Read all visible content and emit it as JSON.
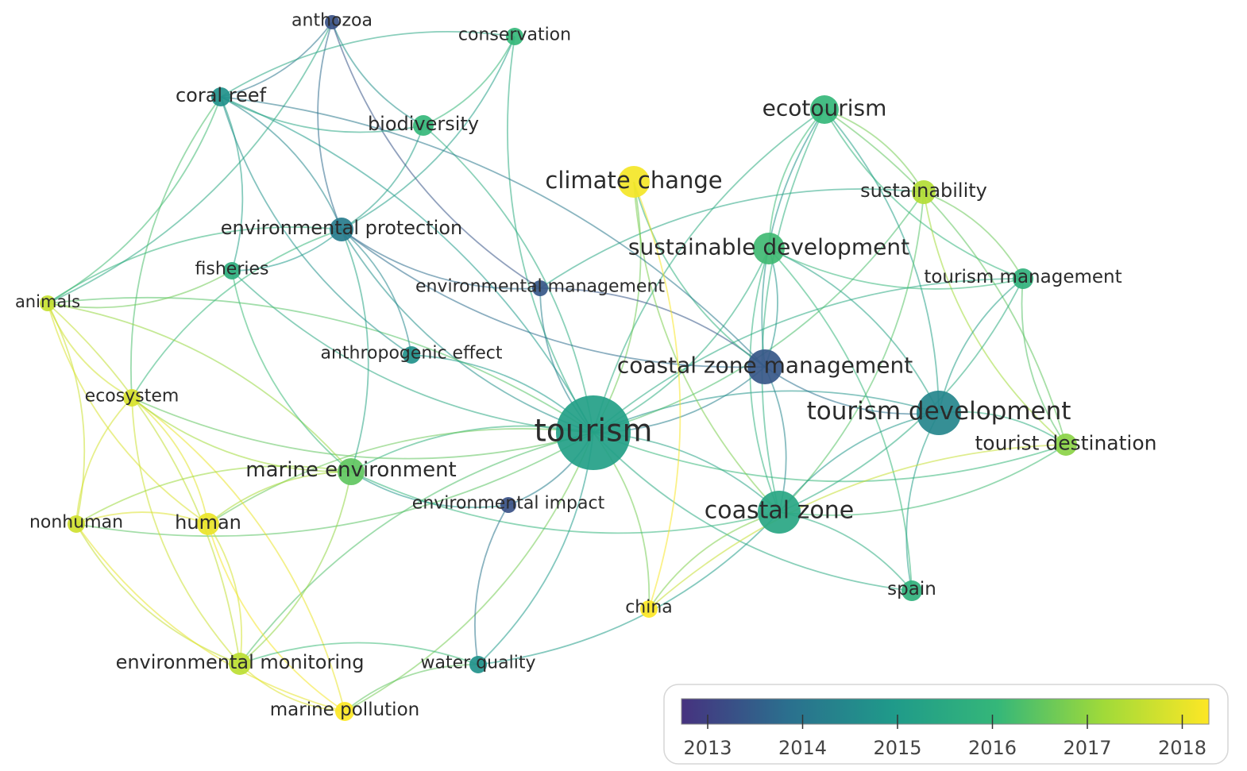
{
  "colors": {
    "y2013": "#46327f",
    "y2014": "#2b6f8e",
    "y2015": "#1f9a8a",
    "y2016": "#35b779",
    "y2017": "#a0da39",
    "y2018": "#fde725"
  },
  "nodes": [
    {
      "id": "anthozoa",
      "label": "anthozoa",
      "year": 2013.5
    },
    {
      "id": "conservation",
      "label": "conservation",
      "year": 2016.0
    },
    {
      "id": "coral_reef",
      "label": "coral reef",
      "year": 2014.8
    },
    {
      "id": "biodiversity",
      "label": "biodiversity",
      "year": 2016.0
    },
    {
      "id": "ecotourism",
      "label": "ecotourism",
      "year": 2016.0
    },
    {
      "id": "climate_change",
      "label": "climate change",
      "year": 2017.9
    },
    {
      "id": "sustainability",
      "label": "sustainability",
      "year": 2017.2
    },
    {
      "id": "environmental_protection",
      "label": "environmental protection",
      "year": 2014.3
    },
    {
      "id": "sustainable_development",
      "label": "sustainable development",
      "year": 2016.1
    },
    {
      "id": "fisheries",
      "label": "fisheries",
      "year": 2015.7
    },
    {
      "id": "tourism_management",
      "label": "tourism management",
      "year": 2015.8
    },
    {
      "id": "environmental_management",
      "label": "environmental management",
      "year": 2013.6
    },
    {
      "id": "animals",
      "label": "animals",
      "year": 2017.4
    },
    {
      "id": "anthropogenic_effect",
      "label": "anthropogenic effect",
      "year": 2014.8
    },
    {
      "id": "coastal_zone_management",
      "label": "coastal zone management",
      "year": 2013.6
    },
    {
      "id": "ecosystem",
      "label": "ecosystem",
      "year": 2017.6
    },
    {
      "id": "tourism_development",
      "label": "tourism development",
      "year": 2014.5
    },
    {
      "id": "tourism",
      "label": "tourism",
      "year": 2015.2
    },
    {
      "id": "tourist_destination",
      "label": "tourist destination",
      "year": 2016.8
    },
    {
      "id": "marine_environment",
      "label": "marine environment",
      "year": 2016.4
    },
    {
      "id": "environmental_impact",
      "label": "environmental impact",
      "year": 2013.5
    },
    {
      "id": "coastal_zone",
      "label": "coastal zone",
      "year": 2015.4
    },
    {
      "id": "nonhuman",
      "label": "nonhuman",
      "year": 2017.5
    },
    {
      "id": "human",
      "label": "human",
      "year": 2017.8
    },
    {
      "id": "spain",
      "label": "spain",
      "year": 2015.8
    },
    {
      "id": "china",
      "label": "china",
      "year": 2018.0
    },
    {
      "id": "environmental_monitoring",
      "label": "environmental monitoring",
      "year": 2017.3
    },
    {
      "id": "water_quality",
      "label": "water quality",
      "year": 2014.8
    },
    {
      "id": "marine_pollution",
      "label": "marine pollution",
      "year": 2018.0
    }
  ],
  "colorbar": {
    "ticks": [
      "2013",
      "2014",
      "2015",
      "2016",
      "2017",
      "2018"
    ]
  }
}
